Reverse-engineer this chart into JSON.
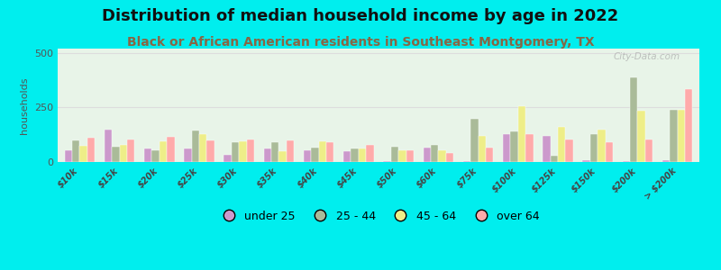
{
  "title": "Distribution of median household income by age in 2022",
  "subtitle": "Black or African American residents in Southeast Montgomery, TX",
  "ylabel": "households",
  "categories": [
    "$10k",
    "$15k",
    "$20k",
    "$25k",
    "$30k",
    "$35k",
    "$40k",
    "$45k",
    "$50k",
    "$60k",
    "$75k",
    "$100k",
    "$125k",
    "$150k",
    "$200k",
    "> $200k"
  ],
  "series": {
    "under 25": [
      55,
      150,
      60,
      60,
      35,
      60,
      55,
      50,
      5,
      65,
      5,
      130,
      120,
      10,
      5,
      10
    ],
    "25 - 44": [
      100,
      70,
      55,
      145,
      90,
      90,
      65,
      60,
      70,
      80,
      200,
      140,
      30,
      130,
      390,
      240
    ],
    "45 - 64": [
      75,
      80,
      95,
      130,
      95,
      50,
      95,
      60,
      55,
      55,
      120,
      255,
      160,
      150,
      235,
      240
    ],
    "over 64": [
      110,
      105,
      115,
      100,
      105,
      100,
      90,
      80,
      55,
      40,
      65,
      130,
      105,
      90,
      105,
      335
    ]
  },
  "colors": {
    "under 25": "#cc99cc",
    "25 - 44": "#aabb99",
    "45 - 64": "#eeee88",
    "over 64": "#ffaaaa"
  },
  "ylim": [
    0,
    520
  ],
  "yticks": [
    0,
    250,
    500
  ],
  "outer_bg": "#00eeee",
  "plot_bg": "#e8f4e8",
  "watermark": "City-Data.com",
  "bar_width": 0.19,
  "title_fontsize": 13,
  "subtitle_fontsize": 10,
  "subtitle_color": "#886644",
  "grid_color": "#dddddd"
}
